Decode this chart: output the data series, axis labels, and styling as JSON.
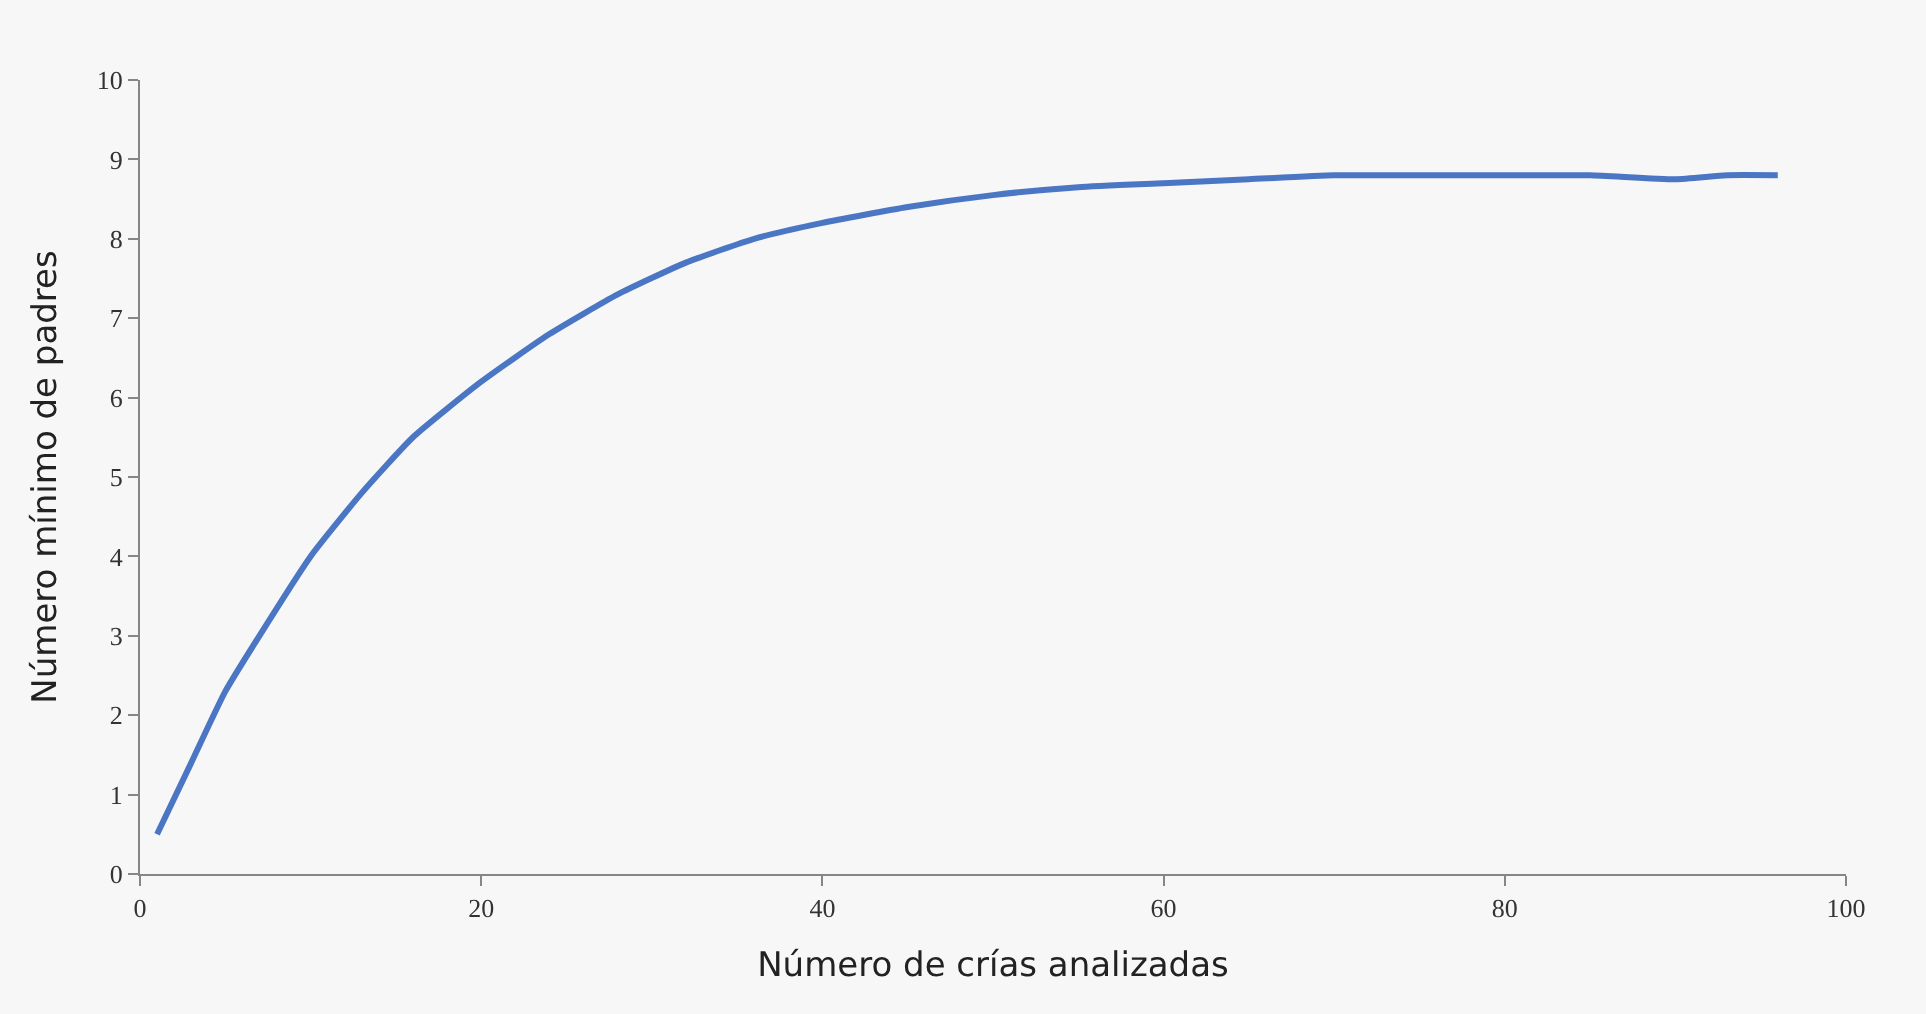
{
  "chart_data": {
    "type": "line",
    "xlabel": "Número de crías analizadas",
    "ylabel": "Número mínimo de padres",
    "x": [
      1,
      3,
      5,
      7,
      10,
      13,
      16,
      20,
      24,
      28,
      32,
      36,
      40,
      45,
      50,
      55,
      60,
      65,
      70,
      75,
      80,
      85,
      90,
      93,
      96
    ],
    "series": [
      {
        "color": "#4a76c4",
        "values": [
          0.5,
          1.4,
          2.3,
          3.0,
          4.0,
          4.8,
          5.5,
          6.2,
          6.8,
          7.3,
          7.7,
          8.0,
          8.2,
          8.4,
          8.55,
          8.65,
          8.7,
          8.75,
          8.8,
          8.8,
          8.8,
          8.8,
          8.75,
          8.8,
          8.8
        ]
      }
    ],
    "xlim": [
      0,
      100
    ],
    "xticks": [
      0,
      20,
      40,
      60,
      80,
      100
    ],
    "ylim": [
      0,
      10
    ],
    "yticks": [
      0,
      1,
      2,
      3,
      4,
      5,
      6,
      7,
      8,
      9,
      10
    ],
    "grid": false,
    "marker": "none",
    "line_style": "solid"
  }
}
